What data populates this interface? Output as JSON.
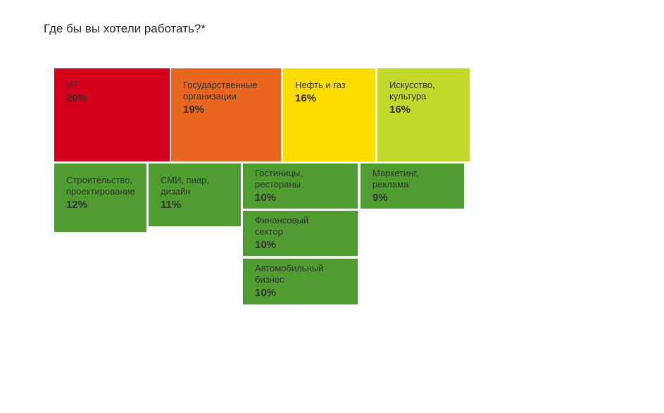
{
  "title": "Где бы вы хотели работать?*",
  "chart_data": {
    "type": "treemap",
    "title": "Где бы вы хотели работать?*",
    "unit": "%",
    "items": [
      {
        "name": "ИТ",
        "label": "ИТ",
        "value": 20,
        "value_label": "20%",
        "color": "#d4001c"
      },
      {
        "name": "Государственные организации",
        "label": "Государственные\nорганизации",
        "value": 19,
        "value_label": "19%",
        "color": "#e8661e"
      },
      {
        "name": "Нефть и газ",
        "label": "Нефть и газ",
        "value": 16,
        "value_label": "16%",
        "color": "#fddc00"
      },
      {
        "name": "Искусство, культура",
        "label": "Искусство,\nкультура",
        "value": 16,
        "value_label": "16%",
        "color": "#c2d92c"
      },
      {
        "name": "Строительство, проектирование",
        "label": "Строительство,\nпроектирование",
        "value": 12,
        "value_label": "12%",
        "color": "#4f9c30"
      },
      {
        "name": "СМИ, пиар, дизайн",
        "label": "СМИ, пиар,\nдизайн",
        "value": 11,
        "value_label": "11%",
        "color": "#4f9c30"
      },
      {
        "name": "Гостиницы, рестораны",
        "label": "Гостиницы,\nрестораны",
        "value": 10,
        "value_label": "10%",
        "color": "#4f9c30"
      },
      {
        "name": "Маркетинг, реклама",
        "label": "Маркетинг,\nреклама",
        "value": 9,
        "value_label": "9%",
        "color": "#4f9c30"
      },
      {
        "name": "Финансовый сектор",
        "label": "Финансовый\nсектор",
        "value": 10,
        "value_label": "10%",
        "color": "#4f9c30"
      },
      {
        "name": "Автомобильный бизнес",
        "label": "Автомобильный\nбизнес",
        "value": 10,
        "value_label": "10%",
        "color": "#4f9c30"
      }
    ]
  }
}
